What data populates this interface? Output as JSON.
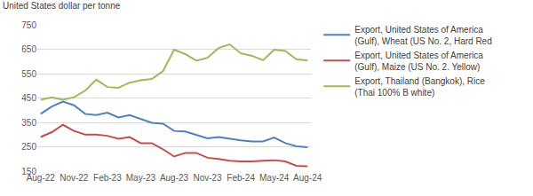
{
  "chart_data": {
    "type": "line",
    "y_label": "United States dollar per tonne",
    "categories": [
      "Aug-22",
      null,
      null,
      "Nov-22",
      null,
      null,
      "Feb-23",
      null,
      null,
      "May-23",
      null,
      null,
      "Aug-23",
      null,
      null,
      "Nov-23",
      null,
      null,
      "Feb-24",
      null,
      null,
      "May-24",
      null,
      null,
      "Aug-24"
    ],
    "series": [
      {
        "name": "Export, United States of America (Gulf), Wheat (US No. 2, Hard Red",
        "color": "#4f81bd",
        "values": [
          385,
          415,
          435,
          420,
          385,
          380,
          390,
          370,
          380,
          365,
          348,
          345,
          315,
          313,
          300,
          285,
          290,
          282,
          276,
          272,
          272,
          288,
          265,
          252,
          248
        ]
      },
      {
        "name": "Export, United States of America (Gulf), Maize (US No. 2. Yellow)",
        "color": "#c0504d",
        "values": [
          290,
          310,
          340,
          315,
          300,
          300,
          295,
          283,
          290,
          265,
          265,
          240,
          210,
          225,
          225,
          205,
          200,
          193,
          190,
          190,
          193,
          195,
          190,
          172,
          170
        ]
      },
      {
        "name": "Export, Thailand (Bangkok), Rice (Thai 100% B white)",
        "color": "#9bbb59",
        "values": [
          443,
          453,
          443,
          453,
          480,
          525,
          495,
          492,
          513,
          523,
          528,
          560,
          648,
          630,
          603,
          615,
          655,
          670,
          633,
          623,
          605,
          648,
          643,
          608,
          605
        ]
      }
    ],
    "ylim": [
      150,
      750
    ],
    "yticks": [
      150,
      250,
      350,
      450,
      550,
      650,
      750
    ],
    "grid": true,
    "legend": "right"
  }
}
